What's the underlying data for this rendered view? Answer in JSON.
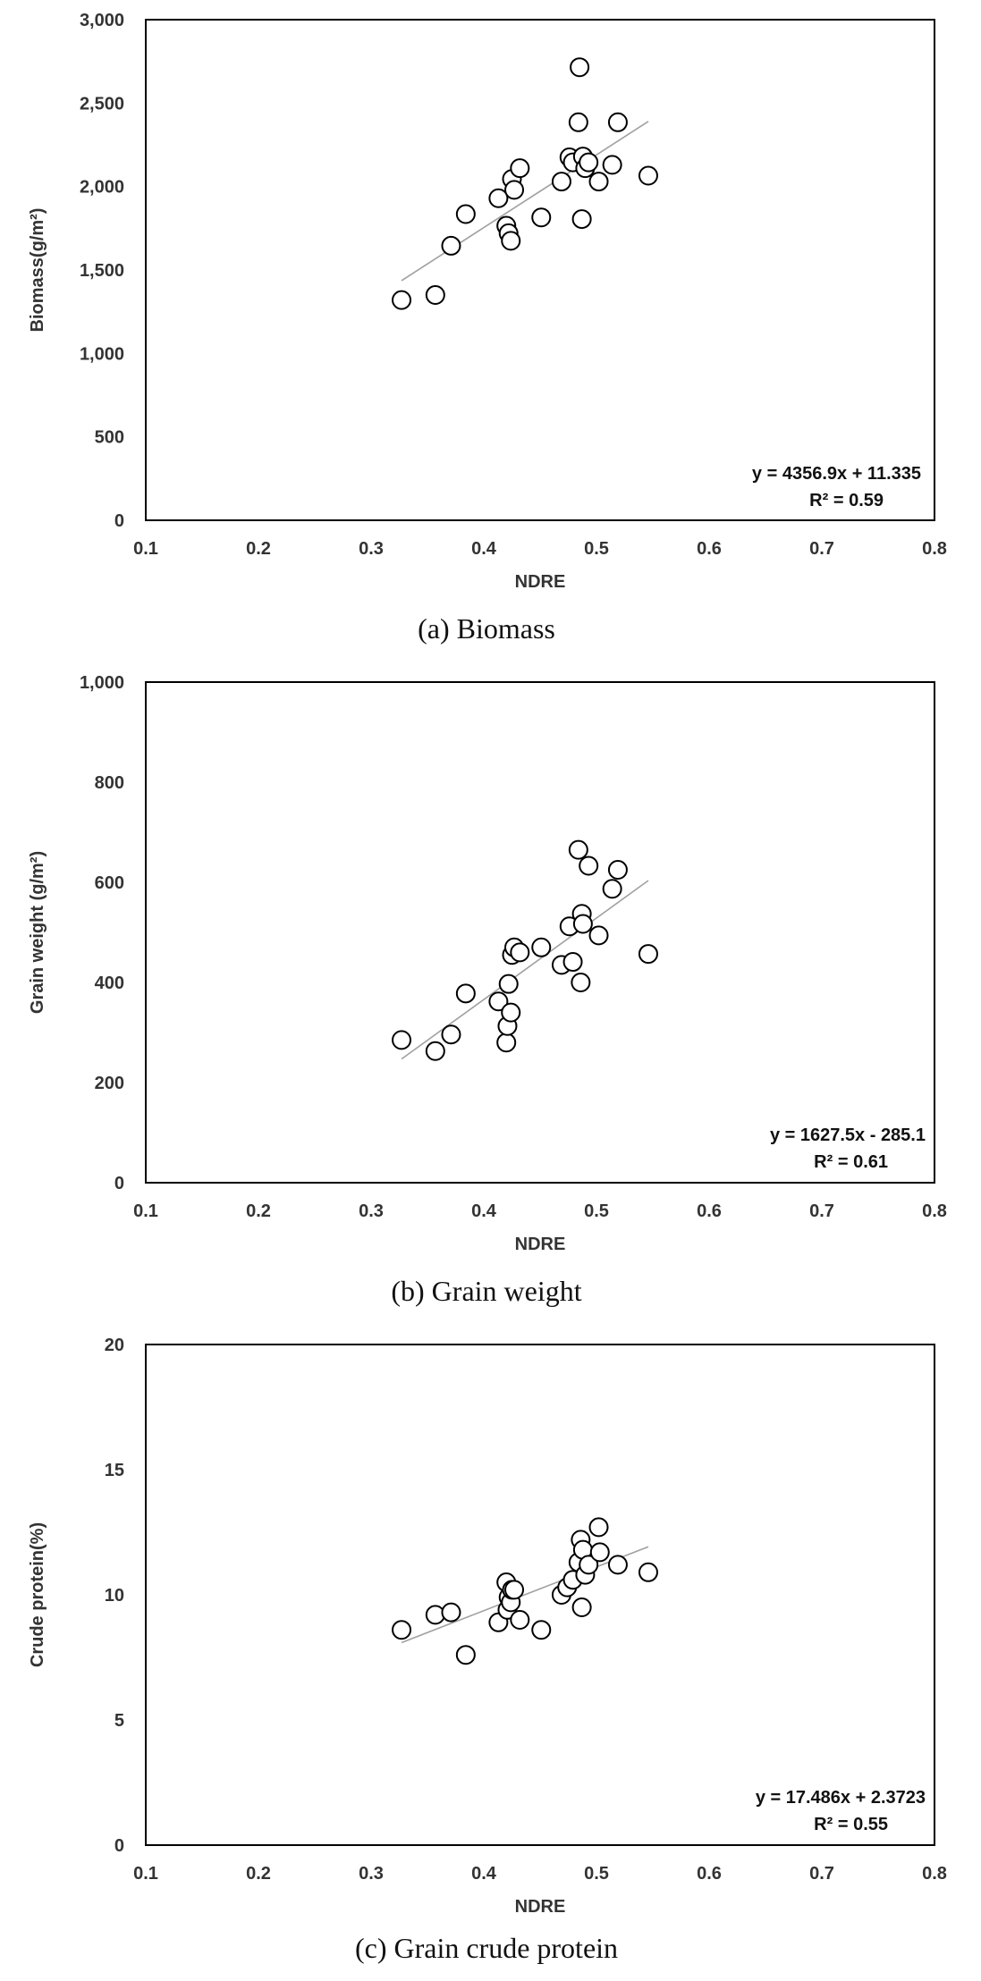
{
  "chart_data": [
    {
      "type": "scatter",
      "xlabel": "NDRE",
      "ylabel": "Biomass(g/m²)",
      "xlim": [
        0.1,
        0.8
      ],
      "ylim": [
        0,
        3000
      ],
      "x_ticks": [
        "0.1",
        "0.2",
        "0.3",
        "0.4",
        "0.5",
        "0.6",
        "0.7",
        "0.8"
      ],
      "y_ticks": [
        "0",
        "500",
        "1,000",
        "1,500",
        "2,000",
        "2,500",
        "3,000"
      ],
      "x_tick_values": [
        0.1,
        0.2,
        0.3,
        0.4,
        0.5,
        0.6,
        0.7,
        0.8
      ],
      "y_tick_values": [
        0,
        500,
        1000,
        1500,
        2000,
        2500,
        3000
      ],
      "equation": "y = 4356.9x + 11.335",
      "r2": "R² = 0.59",
      "trend": {
        "slope": 4356.9,
        "intercept": 11.335,
        "x_range": [
          0.327,
          0.546
        ]
      },
      "caption": "(a) Biomass",
      "grid": false,
      "points": [
        [
          0.327,
          1320
        ],
        [
          0.357,
          1350
        ],
        [
          0.371,
          1645
        ],
        [
          0.384,
          1835
        ],
        [
          0.413,
          1930
        ],
        [
          0.42,
          1765
        ],
        [
          0.422,
          1720
        ],
        [
          0.424,
          1675
        ],
        [
          0.425,
          2045
        ],
        [
          0.427,
          1980
        ],
        [
          0.432,
          2110
        ],
        [
          0.451,
          1815
        ],
        [
          0.469,
          2030
        ],
        [
          0.476,
          2175
        ],
        [
          0.479,
          2145
        ],
        [
          0.484,
          2385
        ],
        [
          0.485,
          2715
        ],
        [
          0.487,
          1805
        ],
        [
          0.488,
          2180
        ],
        [
          0.49,
          2110
        ],
        [
          0.493,
          2145
        ],
        [
          0.502,
          2030
        ],
        [
          0.514,
          2130
        ],
        [
          0.519,
          2385
        ],
        [
          0.546,
          2065
        ]
      ]
    },
    {
      "type": "scatter",
      "xlabel": "NDRE",
      "ylabel": "Grain weight (g/m²)",
      "xlim": [
        0.1,
        0.8
      ],
      "ylim": [
        0,
        1000
      ],
      "x_ticks": [
        "0.1",
        "0.2",
        "0.3",
        "0.4",
        "0.5",
        "0.6",
        "0.7",
        "0.8"
      ],
      "y_ticks": [
        "0",
        "200",
        "400",
        "600",
        "800",
        "1,000"
      ],
      "x_tick_values": [
        0.1,
        0.2,
        0.3,
        0.4,
        0.5,
        0.6,
        0.7,
        0.8
      ],
      "y_tick_values": [
        0,
        200,
        400,
        600,
        800,
        1000
      ],
      "equation": "y = 1627.5x - 285.1",
      "r2": "R² = 0.61",
      "trend": {
        "slope": 1627.5,
        "intercept": -285.1,
        "x_range": [
          0.327,
          0.546
        ]
      },
      "caption": "(b) Grain weight",
      "grid": false,
      "points": [
        [
          0.327,
          285
        ],
        [
          0.357,
          263
        ],
        [
          0.371,
          296
        ],
        [
          0.384,
          378
        ],
        [
          0.413,
          362
        ],
        [
          0.42,
          280
        ],
        [
          0.421,
          313
        ],
        [
          0.422,
          397
        ],
        [
          0.424,
          340
        ],
        [
          0.425,
          455
        ],
        [
          0.427,
          470
        ],
        [
          0.432,
          460
        ],
        [
          0.451,
          470
        ],
        [
          0.469,
          435
        ],
        [
          0.476,
          512
        ],
        [
          0.479,
          441
        ],
        [
          0.484,
          665
        ],
        [
          0.486,
          400
        ],
        [
          0.487,
          537
        ],
        [
          0.488,
          517
        ],
        [
          0.493,
          633
        ],
        [
          0.502,
          494
        ],
        [
          0.514,
          587
        ],
        [
          0.519,
          625
        ],
        [
          0.546,
          457
        ]
      ]
    },
    {
      "type": "scatter",
      "xlabel": "NDRE",
      "ylabel": "Crude protein(%)",
      "xlim": [
        0.1,
        0.8
      ],
      "ylim": [
        0,
        20
      ],
      "x_ticks": [
        "0.1",
        "0.2",
        "0.3",
        "0.4",
        "0.5",
        "0.6",
        "0.7",
        "0.8"
      ],
      "y_ticks": [
        "0",
        "5",
        "10",
        "15",
        "20"
      ],
      "x_tick_values": [
        0.1,
        0.2,
        0.3,
        0.4,
        0.5,
        0.6,
        0.7,
        0.8
      ],
      "y_tick_values": [
        0,
        5,
        10,
        15,
        20
      ],
      "equation": "y = 17.486x + 2.3723",
      "r2": "R² = 0.55",
      "trend": {
        "slope": 17.486,
        "intercept": 2.3723,
        "x_range": [
          0.327,
          0.546
        ]
      },
      "caption": "(c) Grain crude protein",
      "grid": false,
      "points": [
        [
          0.327,
          8.6
        ],
        [
          0.357,
          9.2
        ],
        [
          0.371,
          9.3
        ],
        [
          0.384,
          7.6
        ],
        [
          0.413,
          8.9
        ],
        [
          0.42,
          10.5
        ],
        [
          0.421,
          9.4
        ],
        [
          0.422,
          9.9
        ],
        [
          0.424,
          9.7
        ],
        [
          0.425,
          10.2
        ],
        [
          0.427,
          10.2
        ],
        [
          0.432,
          9.0
        ],
        [
          0.451,
          8.6
        ],
        [
          0.469,
          10.0
        ],
        [
          0.474,
          10.3
        ],
        [
          0.479,
          10.6
        ],
        [
          0.484,
          11.3
        ],
        [
          0.486,
          12.2
        ],
        [
          0.487,
          9.5
        ],
        [
          0.488,
          11.8
        ],
        [
          0.49,
          10.8
        ],
        [
          0.493,
          11.2
        ],
        [
          0.502,
          12.7
        ],
        [
          0.503,
          11.7
        ],
        [
          0.519,
          11.2
        ],
        [
          0.546,
          10.9
        ]
      ]
    }
  ]
}
